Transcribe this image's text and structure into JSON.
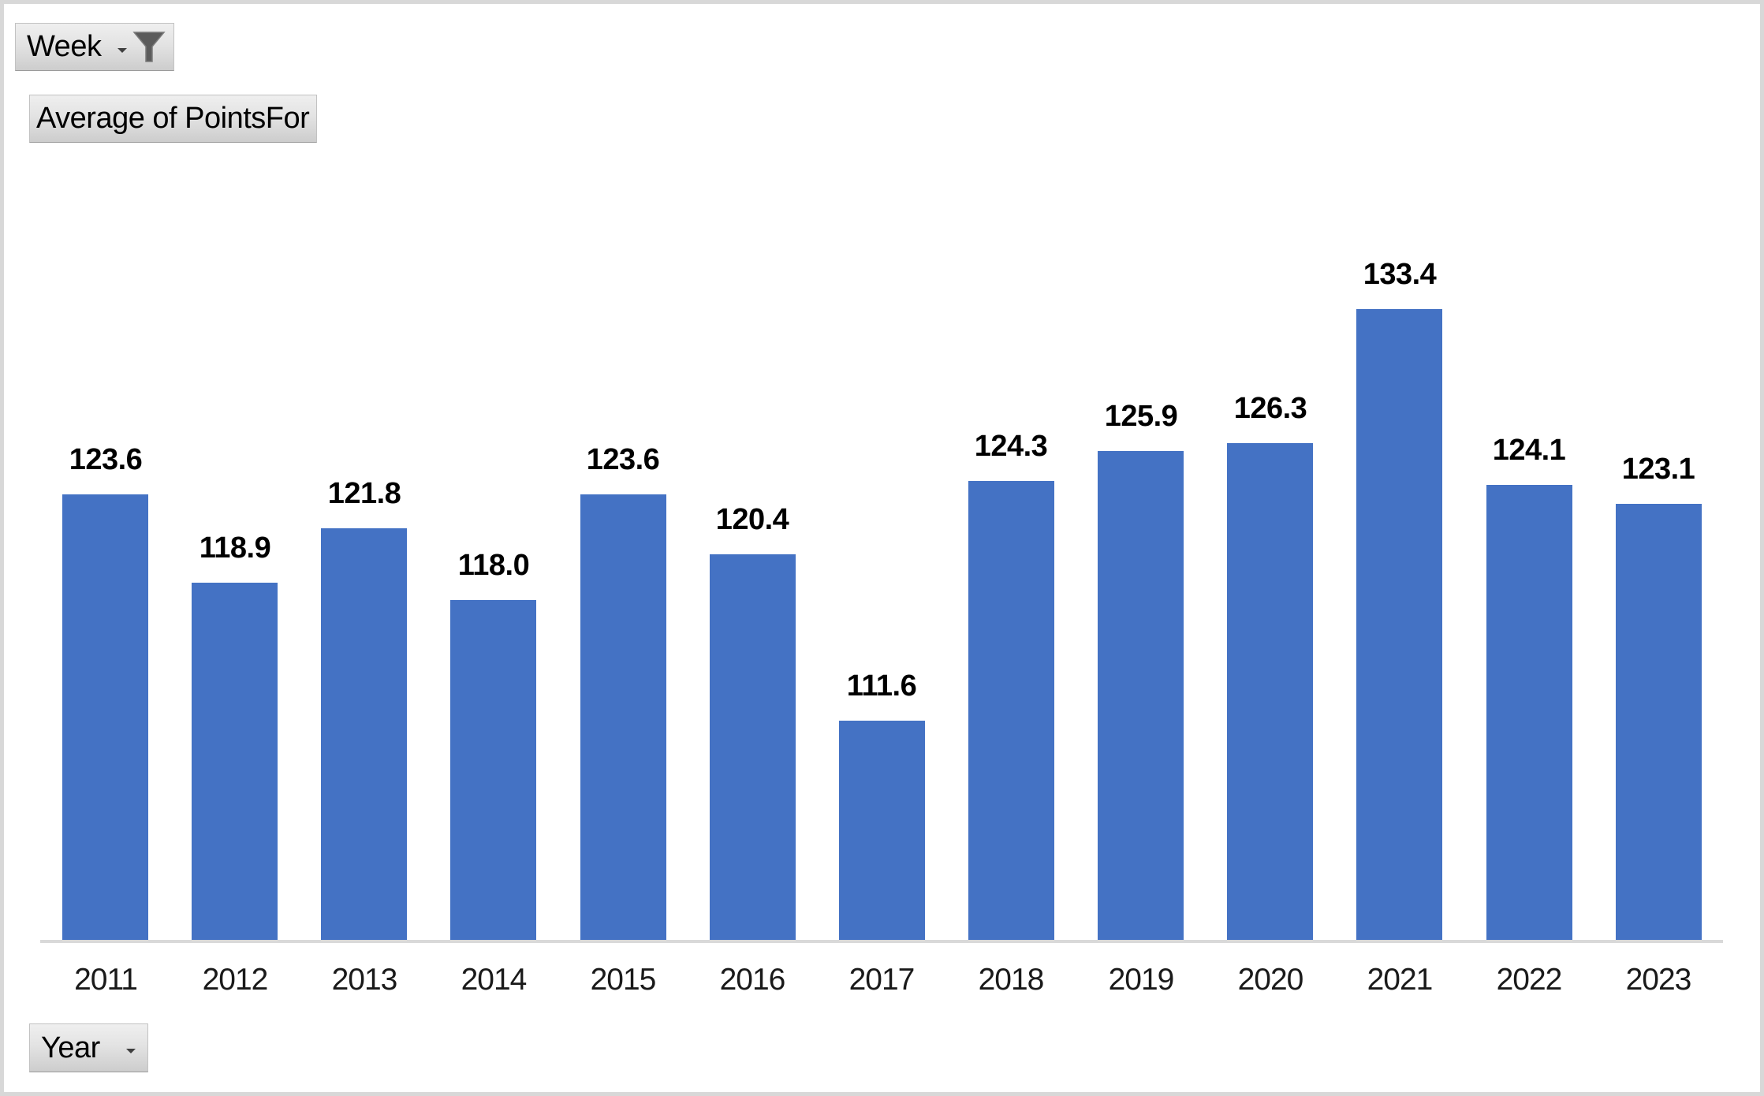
{
  "field_buttons": {
    "filter": {
      "label": "Week"
    },
    "value": {
      "label": "Average of PointsFor"
    },
    "axis": {
      "label": "Year"
    }
  },
  "chart_data": {
    "type": "bar",
    "title": "",
    "series_name": "Average of PointsFor",
    "categories": [
      "2011",
      "2012",
      "2013",
      "2014",
      "2015",
      "2016",
      "2017",
      "2018",
      "2019",
      "2020",
      "2021",
      "2022",
      "2023"
    ],
    "values": [
      123.6,
      118.9,
      121.8,
      118.0,
      123.6,
      120.4,
      111.6,
      124.3,
      125.9,
      126.3,
      133.4,
      124.1,
      123.1
    ],
    "data_labels": [
      "123.6",
      "118.9",
      "121.8",
      "118.0",
      "123.6",
      "120.4",
      "111.6",
      "124.3",
      "125.9",
      "126.3",
      "133.4",
      "124.1",
      "123.1"
    ],
    "xlabel": "Year",
    "ylabel": "Average of PointsFor",
    "ylim": [
      100,
      135
    ],
    "grid": false,
    "legend": "none",
    "bar_color": "#4472C4",
    "axis_line_color": "#D9D9D9"
  },
  "colors": {
    "bar": "#4472C4",
    "axis_line": "#D9D9D9",
    "frame_border": "#D8D8D8",
    "icon_gray": "#5B5B5B"
  },
  "icons": {
    "filter_caret": "dropdown-caret",
    "filter_funnel": "filter-funnel",
    "year_caret": "dropdown-caret"
  }
}
